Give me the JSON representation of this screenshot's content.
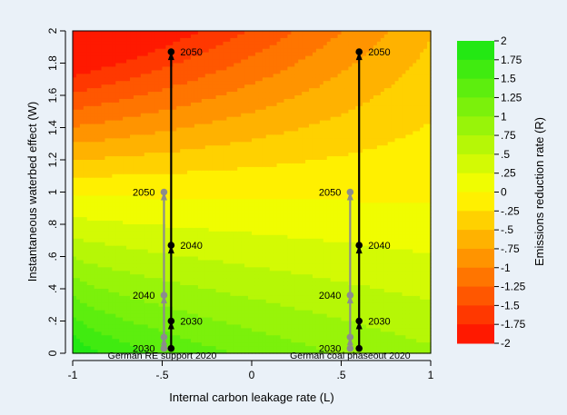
{
  "chart_data": {
    "type": "heatmap",
    "xlabel": "Internal carbon leakage rate (L)",
    "ylabel": "Instantaneous waterbed effect (W)",
    "xlim": [
      -1,
      1
    ],
    "ylim": [
      0,
      2
    ],
    "x_ticks": [
      "-1",
      "-.5",
      "0",
      ".5",
      "1"
    ],
    "x_tick_values": [
      -1,
      -0.5,
      0,
      0.5,
      1
    ],
    "y_ticks": [
      "0",
      ".2",
      ".4",
      ".6",
      ".8",
      "1",
      "1.2",
      "1.4",
      "1.6",
      "1.8",
      "2"
    ],
    "y_tick_values": [
      0,
      0.2,
      0.4,
      0.6,
      0.8,
      1,
      1.2,
      1.4,
      1.6,
      1.8,
      2
    ],
    "colorbar": {
      "label": "Emissions reduction rate (R)",
      "range": [
        -2,
        2
      ],
      "ticks": [
        "2",
        "1.75",
        "1.5",
        "1.25",
        "1",
        ".75",
        ".5",
        ".25",
        "0",
        "-.25",
        "-.5",
        "-.75",
        "-1",
        "-1.25",
        "-1.5",
        "-1.75",
        "-2"
      ],
      "tick_values": [
        2,
        1.75,
        1.5,
        1.25,
        1,
        0.75,
        0.5,
        0.25,
        0,
        -0.25,
        -0.5,
        -0.75,
        -1,
        -1.25,
        -1.5,
        -1.75,
        -2
      ]
    },
    "policies": [
      {
        "label": "German RE support 2020",
        "label_x": -0.5,
        "gray_path": {
          "x": -0.49,
          "points": [
            {
              "y": 0.03,
              "year": "2030"
            },
            {
              "y": 0.1,
              "year": ""
            },
            {
              "y": 0.36,
              "year": "2040"
            },
            {
              "y": 1.0,
              "year": "2050"
            }
          ]
        },
        "black_path": {
          "x": -0.45,
          "points": [
            {
              "y": 0.03,
              "year": ""
            },
            {
              "y": 0.2,
              "year": "2030"
            },
            {
              "y": 0.67,
              "year": "2040"
            },
            {
              "y": 1.87,
              "year": "2050"
            }
          ]
        }
      },
      {
        "label": "German coal phaseout 2020",
        "label_x": 0.55,
        "gray_path": {
          "x": 0.55,
          "points": [
            {
              "y": 0.03,
              "year": "2030"
            },
            {
              "y": 0.1,
              "year": ""
            },
            {
              "y": 0.36,
              "year": "2040"
            },
            {
              "y": 1.0,
              "year": "2050"
            }
          ]
        },
        "black_path": {
          "x": 0.6,
          "points": [
            {
              "y": 0.03,
              "year": ""
            },
            {
              "y": 0.2,
              "year": "2030"
            },
            {
              "y": 0.67,
              "year": "2040"
            },
            {
              "y": 1.87,
              "year": "2050"
            }
          ]
        }
      }
    ]
  },
  "colors": {
    "page_bg": "#eaf1f8",
    "gray_path": "#8c8c8c",
    "black_path": "#000000"
  }
}
